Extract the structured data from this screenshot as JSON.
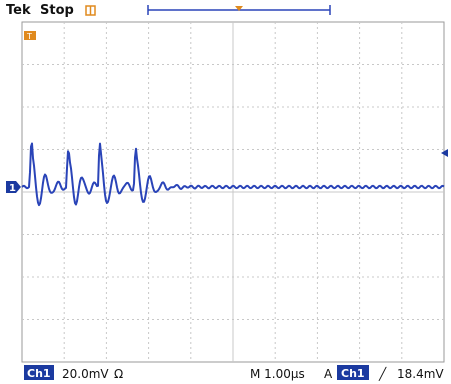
{
  "header": {
    "brand": "Tek",
    "state": "Stop"
  },
  "waveform": {
    "channel": "Ch1",
    "color": "#2a44b8",
    "cycles": [
      {
        "t": 0.18,
        "amp": 1.0
      },
      {
        "t": 1.05,
        "amp": 0.85
      },
      {
        "t": 1.8,
        "amp": 1.0
      },
      {
        "t": 2.65,
        "amp": 0.85
      }
    ]
  },
  "status_bar": {
    "channel_label": "Ch1",
    "volts_per_div": "20.0mV",
    "bandwidth_symbol": "Ω",
    "timebase": "M 1.00μs",
    "acq_mode": "A",
    "trigger_source": "Ch1",
    "trigger_slope": "╱",
    "trigger_level": "18.4mV"
  },
  "colors": {
    "grid": "#c8c8c8",
    "trace": "#2a44b8",
    "marker_orange": "#e08a1e",
    "marker_blue": "#1b3aa0"
  }
}
